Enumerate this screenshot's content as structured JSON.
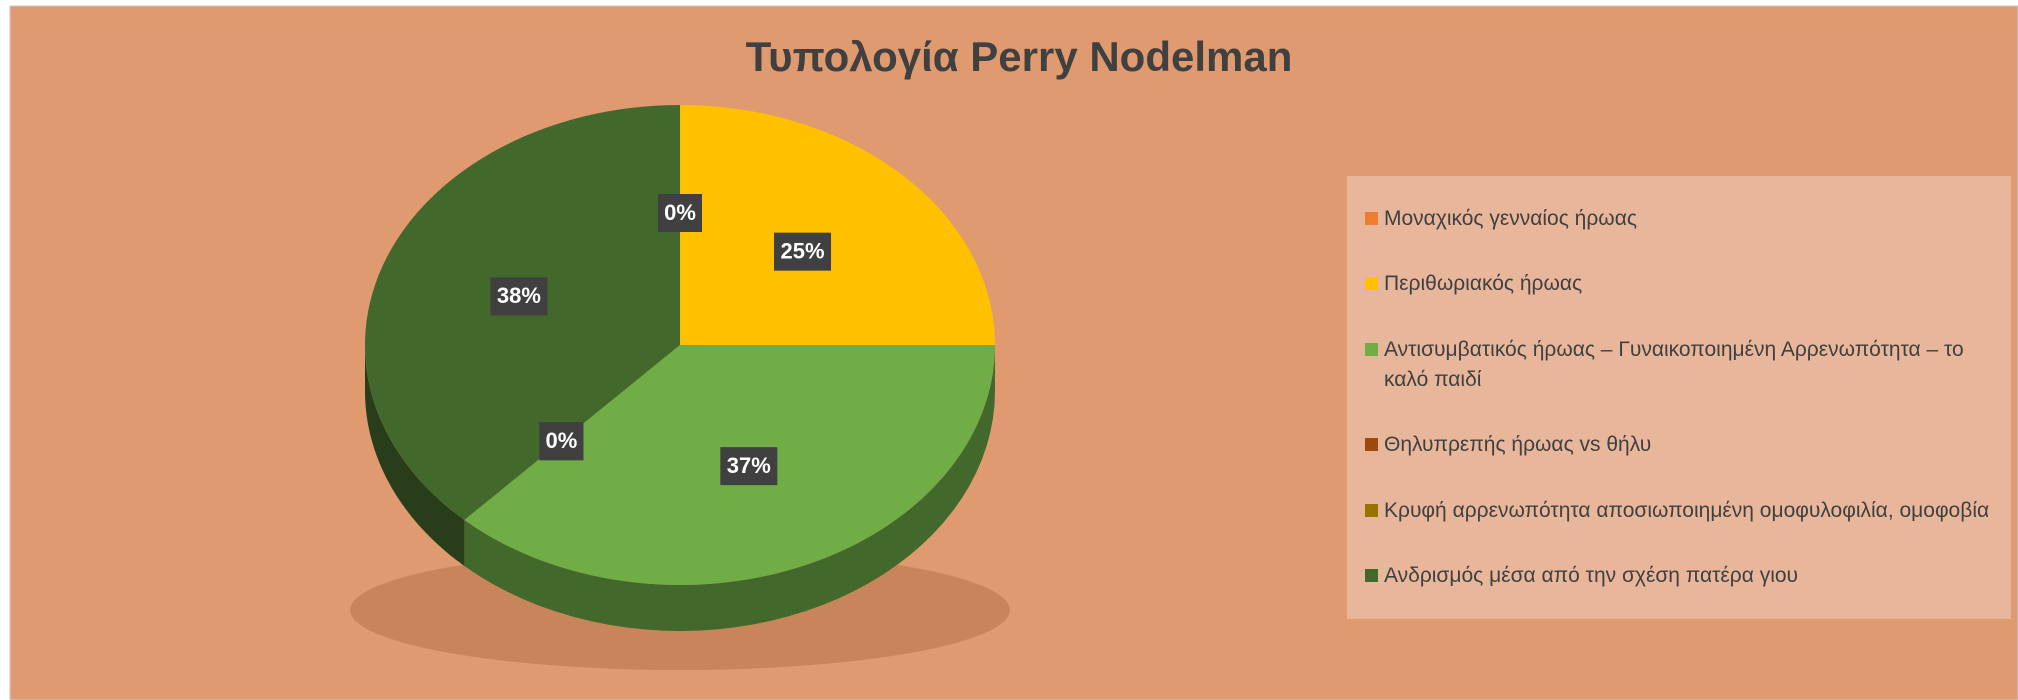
{
  "chart_data": {
    "type": "pie",
    "title": "Τυπολογία Perry Nodelman",
    "categories": [
      "Μοναχικός γενναίος ήρωας",
      "Περιθωριακός ήρωας",
      "Αντισυμβατικός ήρωας – Γυναικοποιημένη Αρρενωπότητα – το καλό παιδί",
      "Θηλυπρεπής ήρωας vs θήλυ",
      "Κρυφή αρρενωπότητα αποσιωποιημένη ομοφυλοφιλία, ομοφοβία",
      "Ανδρισμός μέσα από την σχέση πατέρα γιου"
    ],
    "values": [
      0,
      25,
      37,
      0,
      0,
      38
    ],
    "value_labels": [
      "0%",
      "25%",
      "37%",
      "0%",
      "0%",
      "38%"
    ],
    "colors": [
      "#ed7d31",
      "#ffc000",
      "#70ad47",
      "#9e480e",
      "#997300",
      "#43682b"
    ],
    "legend": "right"
  }
}
